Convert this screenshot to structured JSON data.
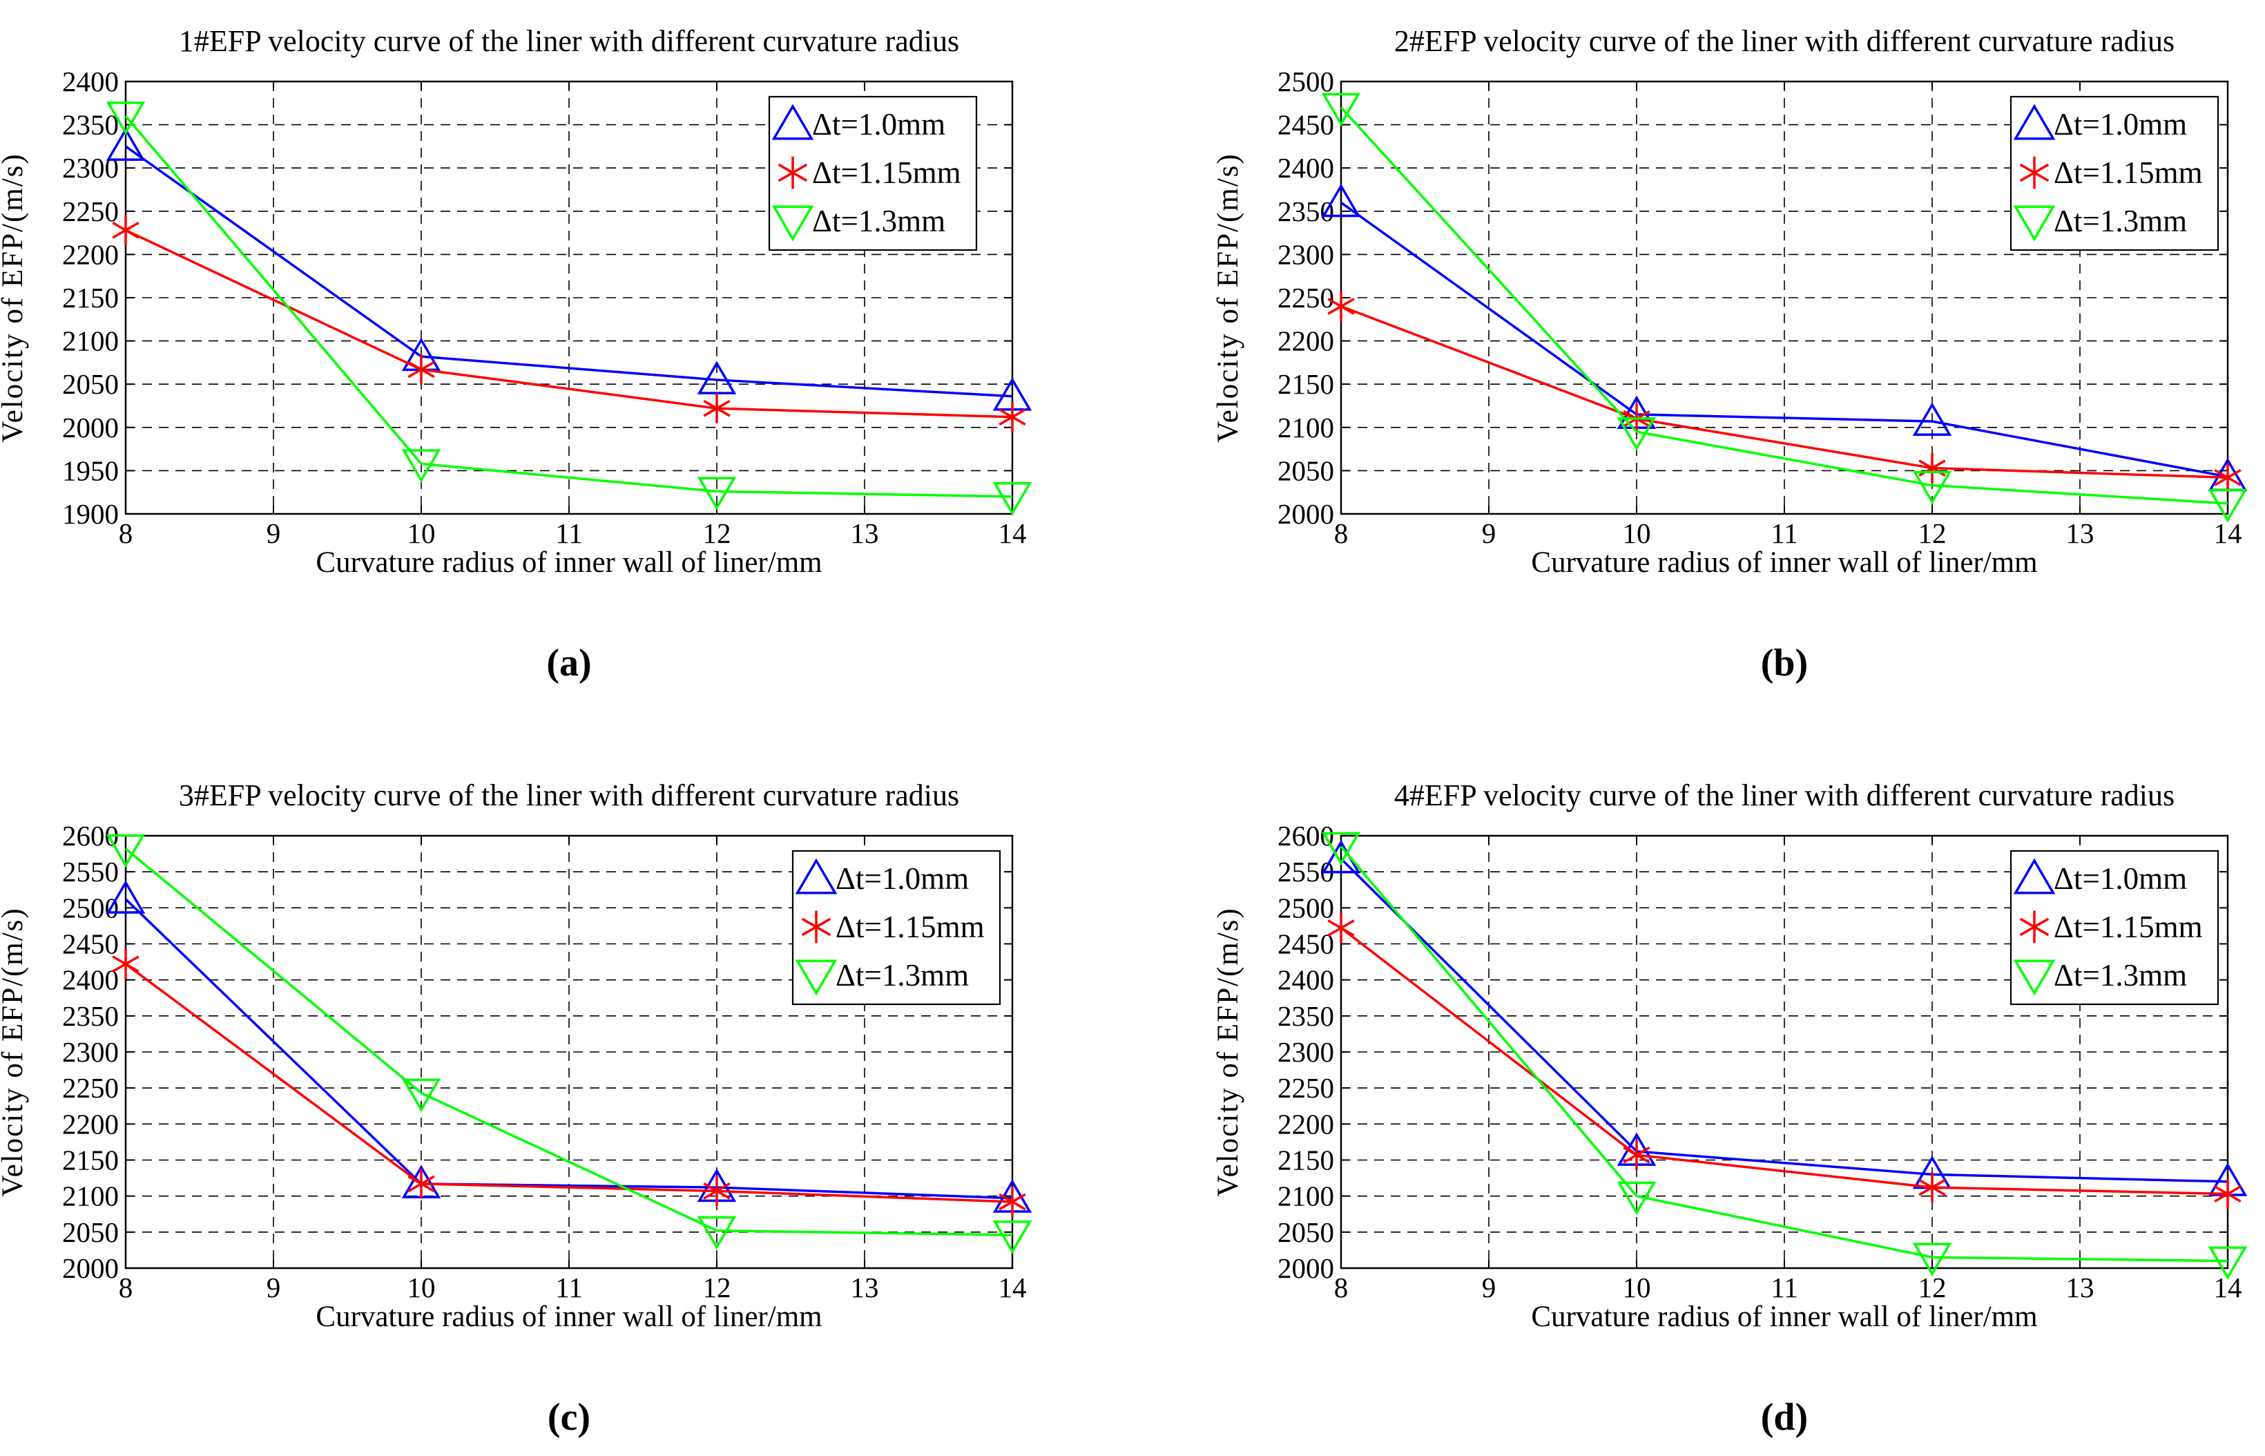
{
  "chart_data": [
    {
      "type": "line",
      "title": "1#EFP velocity curve of the liner with different curvature radius",
      "xlabel": "Curvature radius of inner wall of liner/mm",
      "ylabel": "Velocity of EFP/(m/s)",
      "panel_label": "(a)",
      "xlim": [
        8,
        14
      ],
      "ylim": [
        1900,
        2400
      ],
      "xticks": [
        "8",
        "9",
        "10",
        "11",
        "12",
        "13",
        "14"
      ],
      "yticks": [
        "1900",
        "1950",
        "2000",
        "2050",
        "2100",
        "2150",
        "2200",
        "2250",
        "2300",
        "2350",
        "2400"
      ],
      "grid": true,
      "legend_position": "top-right",
      "x": [
        8,
        10,
        12,
        14
      ],
      "series": [
        {
          "name": "Δt=1.0mm",
          "color": "#0000ff",
          "marker": "triangle-up",
          "values": [
            2325,
            2082,
            2055,
            2036
          ]
        },
        {
          "name": "Δt=1.15mm",
          "color": "#ff0000",
          "marker": "asterisk",
          "values": [
            2228,
            2067,
            2022,
            2012
          ]
        },
        {
          "name": "Δt=1.3mm",
          "color": "#00ff00",
          "marker": "triangle-down",
          "values": [
            2360,
            1958,
            1926,
            1920
          ]
        }
      ]
    },
    {
      "type": "line",
      "title": "2#EFP velocity curve of the liner with different curvature radius",
      "xlabel": "Curvature radius of inner wall of liner/mm",
      "ylabel": "Velocity of EFP/(m/s)",
      "panel_label": "(b)",
      "xlim": [
        8,
        14
      ],
      "ylim": [
        2000,
        2500
      ],
      "xticks": [
        "8",
        "9",
        "10",
        "11",
        "12",
        "13",
        "14"
      ],
      "yticks": [
        "2000",
        "2050",
        "2100",
        "2150",
        "2200",
        "2250",
        "2300",
        "2350",
        "2400",
        "2450",
        "2500"
      ],
      "grid": true,
      "legend_position": "top-right",
      "x": [
        8,
        10,
        12,
        14
      ],
      "series": [
        {
          "name": "Δt=1.0mm",
          "color": "#0000ff",
          "marker": "triangle-up",
          "values": [
            2360,
            2115,
            2107,
            2043
          ]
        },
        {
          "name": "Δt=1.15mm",
          "color": "#ff0000",
          "marker": "asterisk",
          "values": [
            2240,
            2110,
            2053,
            2042
          ]
        },
        {
          "name": "Δt=1.3mm",
          "color": "#00ff00",
          "marker": "triangle-down",
          "values": [
            2470,
            2095,
            2033,
            2012
          ]
        }
      ]
    },
    {
      "type": "line",
      "title": "3#EFP velocity curve of the liner with different curvature radius",
      "xlabel": "Curvature radius of inner wall of liner/mm",
      "ylabel": "Velocity of EFP/(m/s)",
      "panel_label": "(c)",
      "xlim": [
        8,
        14
      ],
      "ylim": [
        2000,
        2600
      ],
      "xticks": [
        "8",
        "9",
        "10",
        "11",
        "12",
        "13",
        "14"
      ],
      "yticks": [
        "2000",
        "2050",
        "2100",
        "2150",
        "2200",
        "2250",
        "2300",
        "2350",
        "2400",
        "2450",
        "2500",
        "2550",
        "2600"
      ],
      "grid": true,
      "legend_position": "top-right",
      "x": [
        8,
        10,
        12,
        14
      ],
      "series": [
        {
          "name": "Δt=1.0mm",
          "color": "#0000ff",
          "marker": "triangle-up",
          "values": [
            2512,
            2117,
            2112,
            2097
          ]
        },
        {
          "name": "Δt=1.15mm",
          "color": "#ff0000",
          "marker": "asterisk",
          "values": [
            2422,
            2117,
            2107,
            2092
          ]
        },
        {
          "name": "Δt=1.3mm",
          "color": "#00ff00",
          "marker": "triangle-down",
          "values": [
            2582,
            2243,
            2052,
            2046
          ]
        }
      ]
    },
    {
      "type": "line",
      "title": "4#EFP velocity curve of the liner with different curvature radius",
      "xlabel": "Curvature radius of inner wall of liner/mm",
      "ylabel": "Velocity of EFP/(m/s)",
      "panel_label": "(d)",
      "xlim": [
        8,
        14
      ],
      "ylim": [
        2000,
        2600
      ],
      "xticks": [
        "8",
        "9",
        "10",
        "11",
        "12",
        "13",
        "14"
      ],
      "yticks": [
        "2000",
        "2050",
        "2100",
        "2150",
        "2200",
        "2250",
        "2300",
        "2350",
        "2400",
        "2450",
        "2500",
        "2550",
        "2600"
      ],
      "grid": true,
      "legend_position": "top-right",
      "x": [
        8,
        10,
        12,
        14
      ],
      "series": [
        {
          "name": "Δt=1.0mm",
          "color": "#0000ff",
          "marker": "triangle-up",
          "values": [
            2568,
            2162,
            2130,
            2120
          ]
        },
        {
          "name": "Δt=1.15mm",
          "color": "#ff0000",
          "marker": "asterisk",
          "values": [
            2472,
            2157,
            2112,
            2103
          ]
        },
        {
          "name": "Δt=1.3mm",
          "color": "#00ff00",
          "marker": "triangle-down",
          "values": [
            2585,
            2100,
            2015,
            2010
          ]
        }
      ]
    }
  ]
}
